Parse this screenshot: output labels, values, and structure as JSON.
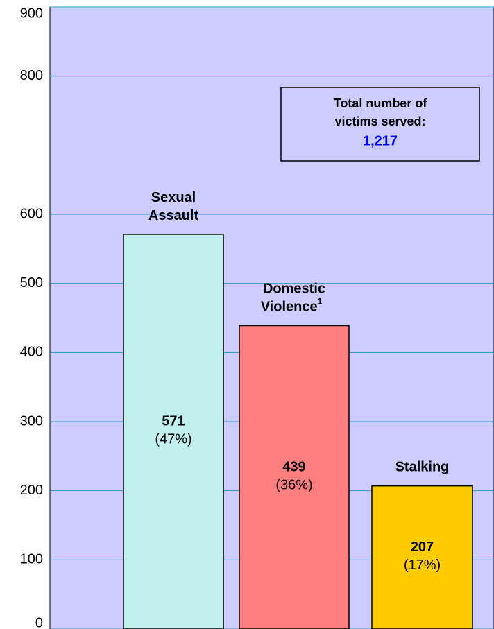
{
  "chart_data": {
    "type": "bar",
    "categories": [
      "Sexual Assault",
      "Domestic Violence",
      "Stalking"
    ],
    "footnote_marker": "1",
    "values": [
      571,
      439,
      207
    ],
    "percent_labels": [
      "(47%)",
      "(36%)",
      "(17%)"
    ],
    "colors": [
      "#c2eeee",
      "#ff7f80",
      "#ffcc00"
    ],
    "ylim": [
      0,
      900
    ],
    "yticks": [
      0,
      100,
      200,
      300,
      400,
      500,
      600,
      800,
      900
    ],
    "grid": true,
    "annotation": {
      "text": "Total number of victims served:",
      "value_label": "1,217"
    }
  }
}
